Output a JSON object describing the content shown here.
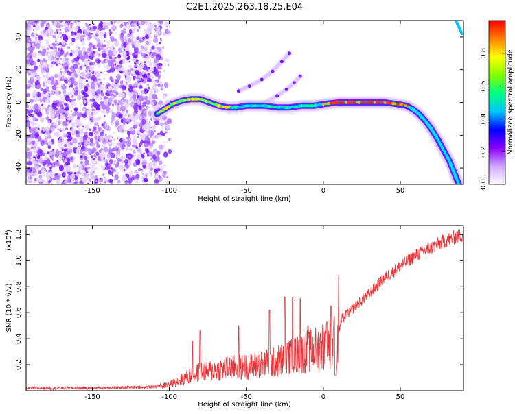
{
  "title": "C2E1.2025.263.18.25.E04",
  "chart_data": [
    {
      "type": "heatmap",
      "xlabel": "Height of straight line (km)",
      "ylabel": "Frequency (Hz)",
      "xlim": [
        -193,
        91
      ],
      "ylim": [
        -50,
        50
      ],
      "xticks": [
        -150,
        -100,
        -50,
        0,
        50
      ],
      "xtick_labels": [
        "-150",
        "-100",
        "-50",
        "0",
        "50"
      ],
      "yticks": [
        -40,
        -20,
        0,
        20,
        40
      ],
      "ytick_labels": [
        "-40",
        "-20",
        "0",
        "20",
        "40"
      ],
      "colorbar": {
        "label": "Normalized spectral amplitude",
        "range": [
          0,
          1
        ],
        "ticks": [
          0.0,
          0.2,
          0.4,
          0.6,
          0.8
        ],
        "tick_labels": [
          "0.0",
          "0.2",
          "0.4",
          "0.6",
          "0.8"
        ],
        "colormap": [
          "#ffffff",
          "#cfa7ff",
          "#8a00ff",
          "#0000ff",
          "#00c8ff",
          "#00ff80",
          "#80ff00",
          "#ffff00",
          "#ff8000",
          "#ff0000"
        ]
      },
      "noise_region": {
        "x_start": -193,
        "x_end": -105
      },
      "main_trace": [
        [
          -108,
          -7
        ],
        [
          -103,
          -4
        ],
        [
          -98,
          -1
        ],
        [
          -92,
          1
        ],
        [
          -86,
          2
        ],
        [
          -80,
          2
        ],
        [
          -74,
          0
        ],
        [
          -68,
          -2
        ],
        [
          -62,
          -3
        ],
        [
          -56,
          -3
        ],
        [
          -50,
          -2
        ],
        [
          -44,
          -2
        ],
        [
          -38,
          -2
        ],
        [
          -30,
          -3
        ],
        [
          -22,
          -3
        ],
        [
          -14,
          -2
        ],
        [
          -6,
          -2
        ],
        [
          0,
          -1
        ],
        [
          10,
          0
        ],
        [
          20,
          0
        ],
        [
          30,
          0
        ],
        [
          40,
          0
        ],
        [
          48,
          -1
        ],
        [
          54,
          -2
        ],
        [
          58,
          -4
        ],
        [
          62,
          -7
        ],
        [
          66,
          -11
        ],
        [
          70,
          -16
        ],
        [
          74,
          -22
        ],
        [
          78,
          -29
        ],
        [
          82,
          -36
        ],
        [
          85,
          -43
        ],
        [
          88,
          -50
        ]
      ],
      "secondary_traces": [
        [
          [
            -55,
            7
          ],
          [
            -48,
            10
          ],
          [
            -40,
            14
          ],
          [
            -33,
            19
          ],
          [
            -27,
            25
          ],
          [
            -22,
            30
          ]
        ],
        [
          [
            -45,
            -3
          ],
          [
            -38,
            0
          ],
          [
            -30,
            4
          ],
          [
            -24,
            8
          ],
          [
            -19,
            12
          ],
          [
            -15,
            16
          ]
        ]
      ],
      "top_right_trace": [
        [
          86,
          50
        ],
        [
          88,
          46
        ],
        [
          90,
          42
        ]
      ]
    },
    {
      "type": "line",
      "xlabel": "Height of straight line (km)",
      "ylabel": "SNR (10 * v/v)",
      "multiplier": "(x10",
      "multiplier_exp": "4",
      "multiplier_close": ")",
      "xlim": [
        -193,
        91
      ],
      "ylim": [
        0,
        1.27
      ],
      "xticks": [
        -150,
        -100,
        -50,
        0,
        50
      ],
      "xtick_labels": [
        "-150",
        "-100",
        "-50",
        "0",
        "50"
      ],
      "yticks": [
        0.2,
        0.4,
        0.6,
        0.8,
        1.0,
        1.2
      ],
      "ytick_labels": [
        "0.2",
        "0.4",
        "0.6",
        "0.8",
        "1.0",
        "1.2"
      ],
      "color": "#e8383d",
      "envelope": [
        [
          -193,
          0.02
        ],
        [
          -150,
          0.02
        ],
        [
          -110,
          0.03
        ],
        [
          -100,
          0.06
        ],
        [
          -90,
          0.12
        ],
        [
          -80,
          0.18
        ],
        [
          -70,
          0.2
        ],
        [
          -60,
          0.22
        ],
        [
          -50,
          0.23
        ],
        [
          -40,
          0.25
        ],
        [
          -30,
          0.28
        ],
        [
          -20,
          0.33
        ],
        [
          -10,
          0.38
        ],
        [
          -5,
          0.4
        ],
        [
          0,
          0.44
        ],
        [
          5,
          0.46
        ],
        [
          8,
          0.35
        ],
        [
          12,
          0.55
        ],
        [
          20,
          0.64
        ],
        [
          30,
          0.75
        ],
        [
          40,
          0.87
        ],
        [
          50,
          0.96
        ],
        [
          60,
          1.04
        ],
        [
          70,
          1.1
        ],
        [
          80,
          1.16
        ],
        [
          91,
          1.2
        ]
      ],
      "spikes": [
        [
          -85,
          0.38
        ],
        [
          -80,
          0.46
        ],
        [
          -55,
          0.5
        ],
        [
          -35,
          0.62
        ],
        [
          -25,
          0.72
        ],
        [
          -20,
          0.72
        ],
        [
          -15,
          0.71
        ],
        [
          -10,
          0.5
        ],
        [
          2,
          0.52
        ],
        [
          5,
          0.65
        ],
        [
          7,
          0.57
        ],
        [
          10,
          0.89
        ]
      ],
      "dip": [
        8,
        0.12
      ]
    }
  ]
}
